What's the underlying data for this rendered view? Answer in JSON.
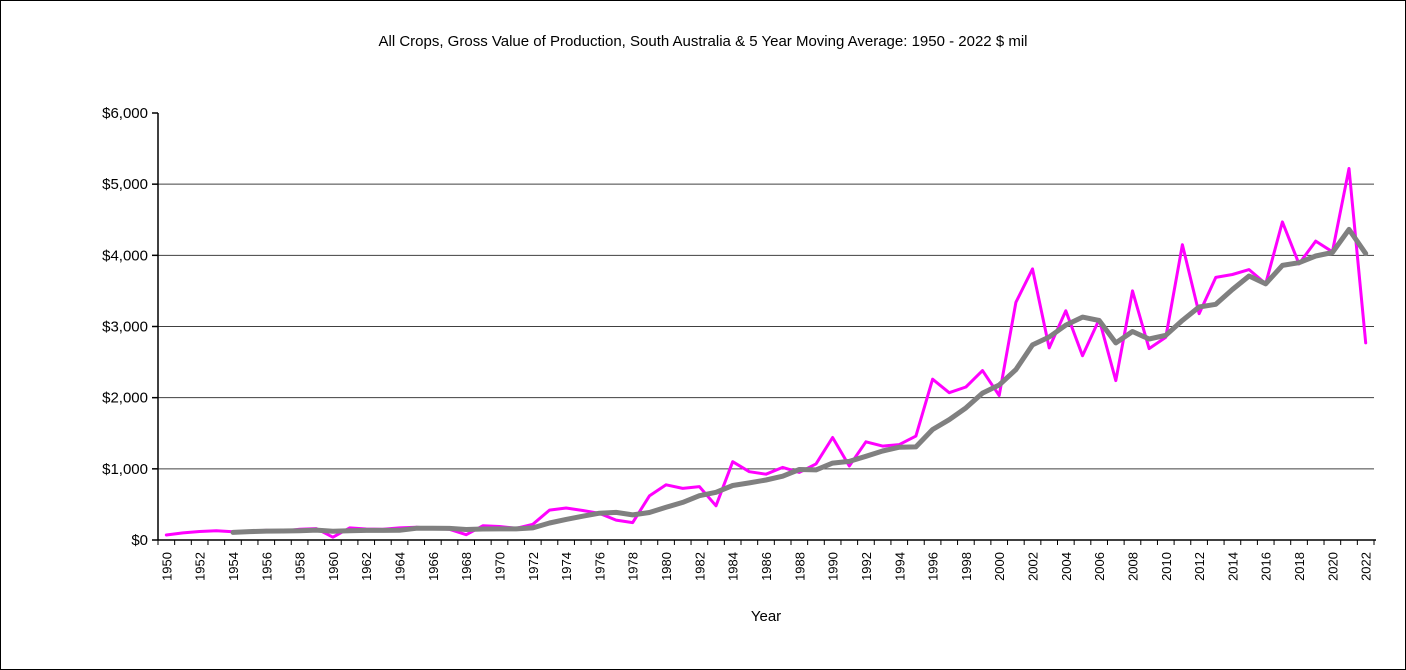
{
  "title": "All Crops, Gross Value of Production, South Australia & 5 Year Moving Average: 1950 - 2022 $ mil",
  "chart_data": {
    "type": "line",
    "title": "All Crops, Gross Value of Production, South Australia & 5 Year Moving Average: 1950 - 2022 $ mil",
    "xlabel": "Year",
    "ylabel": "",
    "ylim": [
      0,
      6000
    ],
    "y_ticks": [
      0,
      1000,
      2000,
      3000,
      4000,
      5000,
      6000
    ],
    "y_tick_labels": [
      "$0",
      "$1,000",
      "$2,000",
      "$3,000",
      "$4,000",
      "$5,000",
      "$6,000"
    ],
    "x_tick_label_step": 2,
    "grid": "horizontal",
    "legend": "none",
    "axis_color": "#000000",
    "grid_color": "#404040",
    "x": [
      1950,
      1951,
      1952,
      1953,
      1954,
      1955,
      1956,
      1957,
      1958,
      1959,
      1960,
      1961,
      1962,
      1963,
      1964,
      1965,
      1966,
      1967,
      1968,
      1969,
      1970,
      1971,
      1972,
      1973,
      1974,
      1975,
      1976,
      1977,
      1978,
      1979,
      1980,
      1981,
      1982,
      1983,
      1984,
      1985,
      1986,
      1987,
      1988,
      1989,
      1990,
      1991,
      1992,
      1993,
      1994,
      1995,
      1996,
      1997,
      1998,
      1999,
      2000,
      2001,
      2002,
      2003,
      2004,
      2005,
      2006,
      2007,
      2008,
      2009,
      2010,
      2011,
      2012,
      2013,
      2014,
      2015,
      2016,
      2017,
      2018,
      2019,
      2020,
      2021,
      2022
    ],
    "series": [
      {
        "key": "gvp",
        "name": "All Crops, Gross Value of Production ($ mil)",
        "color": "#FF00FF",
        "width": 3,
        "values": [
          70,
          100,
          120,
          130,
          115,
          125,
          135,
          125,
          150,
          160,
          40,
          170,
          155,
          150,
          170,
          180,
          165,
          150,
          75,
          200,
          190,
          165,
          220,
          420,
          450,
          415,
          375,
          280,
          245,
          620,
          775,
          725,
          750,
          480,
          1100,
          960,
          925,
          1020,
          950,
          1070,
          1440,
          1040,
          1380,
          1320,
          1340,
          1460,
          2260,
          2070,
          2150,
          2380,
          2030,
          3340,
          3810,
          2700,
          3220,
          2590,
          3100,
          2240,
          3500,
          2690,
          2850,
          4150,
          3180,
          3690,
          3730,
          3800,
          3600,
          4470,
          3880,
          4200,
          4050,
          5220,
          2770
        ]
      },
      {
        "key": "moving-average",
        "name": "5 Year Moving Average",
        "color": "#808080",
        "width": 5,
        "values": [
          null,
          null,
          null,
          null,
          107,
          118,
          125,
          126,
          130,
          139,
          122,
          129,
          135,
          135,
          137,
          165,
          164,
          163,
          148,
          154,
          156,
          156,
          170,
          239,
          289,
          334,
          376,
          388,
          353,
          387,
          459,
          529,
          623,
          670,
          766,
          803,
          843,
          897,
          991,
          985,
          1081,
          1104,
          1176,
          1250,
          1304,
          1308,
          1552,
          1690,
          1856,
          2064,
          2178,
          2394,
          2742,
          2852,
          3020,
          3132,
          3084,
          2770,
          2930,
          2824,
          2876,
          3086,
          3274,
          3312,
          3520,
          3710,
          3600,
          3858,
          3896,
          3990,
          4040,
          4364,
          4024
        ]
      }
    ]
  }
}
